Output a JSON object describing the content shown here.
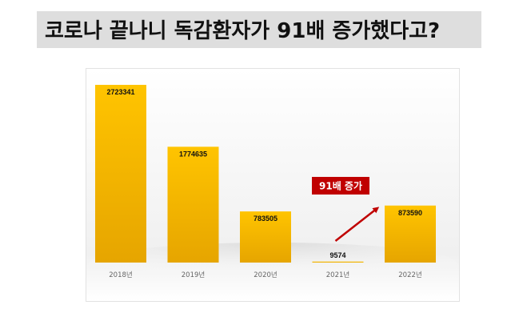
{
  "title": "코로나 끝나니 독감환자가 91배 증가했다고?",
  "chart_data": {
    "type": "bar",
    "categories": [
      "2018년",
      "2019년",
      "2020년",
      "2021년",
      "2022년"
    ],
    "values": [
      2723341,
      1774635,
      783505,
      9574,
      873590
    ],
    "ylim": [
      0,
      2723341
    ],
    "legend": "none",
    "grid": false,
    "annotation": {
      "text": "91배 증가",
      "points_to": "2022년"
    }
  },
  "colors": {
    "bar_top": "#ffc400",
    "bar_bottom": "#e9a800",
    "callout_bg": "#c00000",
    "arrow": "#c00000"
  }
}
